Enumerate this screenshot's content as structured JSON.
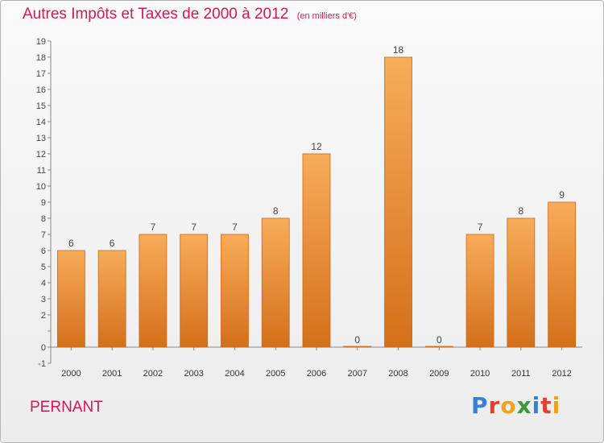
{
  "title": "Autres Impôts et Taxes de 2000 à 2012",
  "unit": "(en milliers d'€)",
  "commune": "PERNANT",
  "brand": {
    "text": "Proxiti",
    "colors": [
      "#3a7fd0",
      "#e0402f",
      "#f0a020",
      "#3a9a3a",
      "#3a7fd0",
      "#e0402f",
      "#f0a020"
    ]
  },
  "colors": {
    "bar_top": "#f8ac5a",
    "bar_bottom": "#d4701a",
    "bar_edge": "#c96818",
    "title": "#d0185a",
    "axis": "#888888",
    "grid": "#cccccc"
  },
  "chart_data": {
    "type": "bar",
    "categories": [
      "2000",
      "2001",
      "2002",
      "2003",
      "2004",
      "2005",
      "2006",
      "2007",
      "2008",
      "2009",
      "2010",
      "2011",
      "2012"
    ],
    "values": [
      6,
      6,
      7,
      7,
      7,
      8,
      12,
      0,
      18,
      0,
      7,
      8,
      9
    ],
    "y_ticks": [
      -1,
      0,
      1,
      2,
      3,
      4,
      5,
      6,
      7,
      8,
      9,
      10,
      11,
      12,
      13,
      14,
      15,
      16,
      17,
      18,
      19
    ],
    "y_tick_labels": [
      "-1",
      "0",
      "",
      "2",
      "3",
      "4",
      "5",
      "6",
      "7",
      "8",
      "9",
      "10",
      "11",
      "12",
      "13",
      "14",
      "15",
      "16",
      "17",
      "18",
      "19"
    ],
    "ylim": [
      -1,
      19
    ],
    "title": "Autres Impôts et Taxes de 2000 à 2012",
    "xlabel": "",
    "ylabel": "",
    "grid": false,
    "data_labels": true
  }
}
